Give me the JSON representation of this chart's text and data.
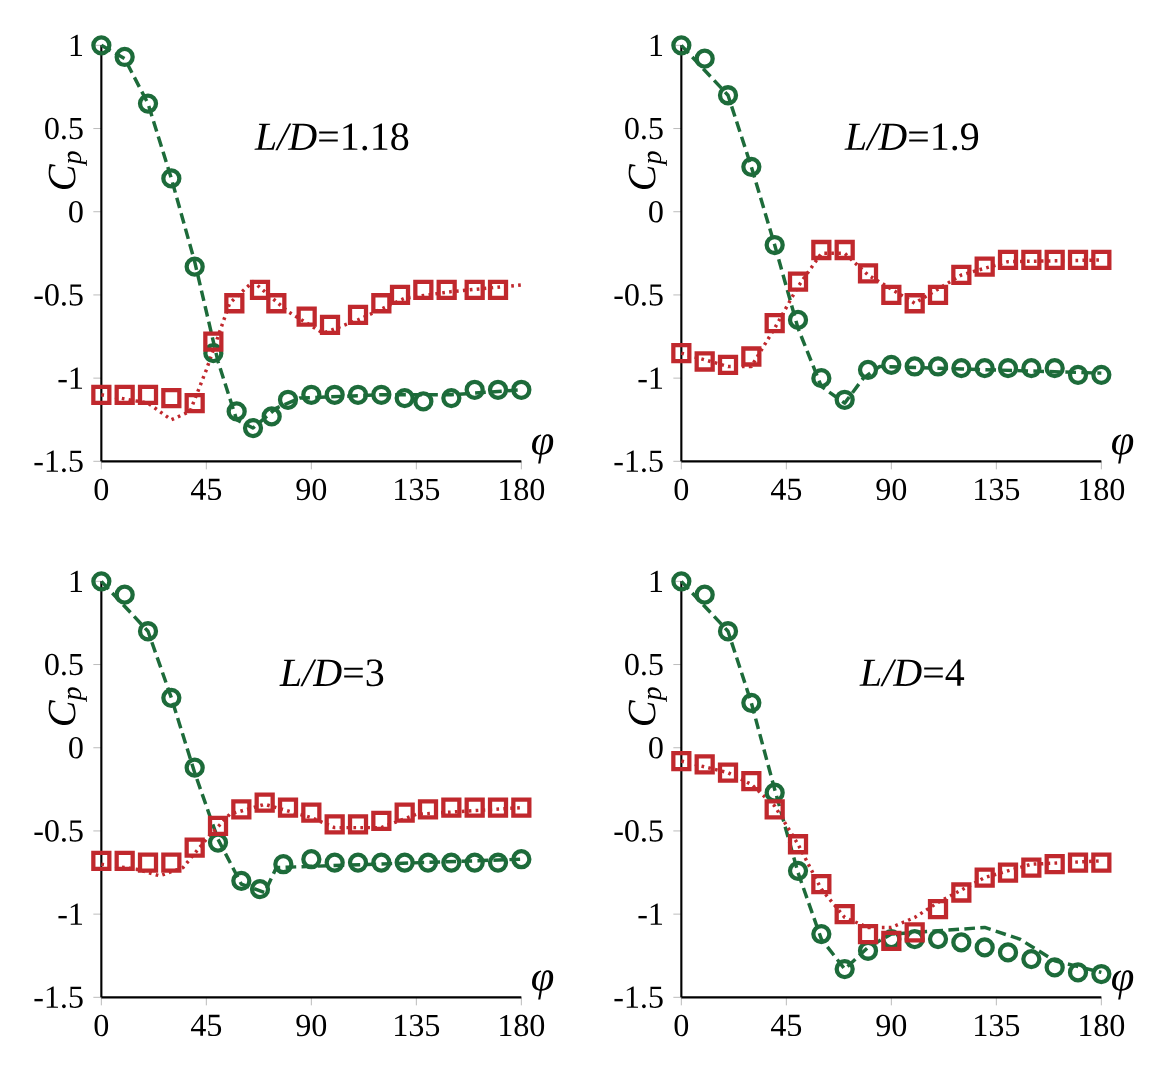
{
  "chart_data": [
    {
      "type": "scatter",
      "title": "*L/D*=1.18",
      "xlabel": "φ",
      "ylabel": "C$_{p}$",
      "xlim": [
        0,
        180
      ],
      "ylim": [
        -1.5,
        1
      ],
      "xticks": [
        0,
        45,
        90,
        135,
        180
      ],
      "yticks": [
        -1.5,
        -1,
        -0.5,
        0,
        0.5,
        1
      ],
      "series": [
        {
          "color": "#1d6b3a",
          "marker": "circle",
          "x": [
            0,
            10,
            20,
            30,
            40,
            48,
            58,
            65,
            73,
            80,
            90,
            100,
            110,
            120,
            130,
            138,
            150,
            160,
            170,
            180
          ],
          "values": [
            1,
            0.93,
            0.65,
            0.2,
            -0.33,
            -0.85,
            -1.2,
            -1.3,
            -1.23,
            -1.13,
            -1.1,
            -1.1,
            -1.1,
            -1.1,
            -1.12,
            -1.14,
            -1.12,
            -1.07,
            -1.07,
            -1.07
          ]
        },
        {
          "type": "line",
          "color": "#1d6b3a",
          "line_style": "dashed",
          "x": [
            0,
            10,
            20,
            30,
            40,
            50,
            58,
            65,
            75,
            85,
            120,
            150,
            180
          ],
          "values": [
            1,
            0.92,
            0.65,
            0.2,
            -0.3,
            -0.9,
            -1.25,
            -1.3,
            -1.18,
            -1.12,
            -1.1,
            -1.1,
            -1.07
          ]
        },
        {
          "color": "#c0282d",
          "marker": "square",
          "x": [
            0,
            10,
            20,
            30,
            40,
            48,
            57,
            68,
            75,
            88,
            98,
            110,
            120,
            128,
            138,
            148,
            160,
            170
          ],
          "values": [
            -1.1,
            -1.1,
            -1.1,
            -1.12,
            -1.15,
            -0.78,
            -0.55,
            -0.47,
            -0.55,
            -0.63,
            -0.68,
            -0.62,
            -0.55,
            -0.5,
            -0.47,
            -0.47,
            -0.47,
            -0.47
          ]
        },
        {
          "type": "line",
          "color": "#c0282d",
          "line_style": "dotted",
          "x": [
            0,
            20,
            30,
            38,
            45,
            55,
            65,
            80,
            95,
            110,
            130,
            150,
            180
          ],
          "values": [
            -1.1,
            -1.15,
            -1.25,
            -1.2,
            -0.95,
            -0.55,
            -0.42,
            -0.6,
            -0.73,
            -0.65,
            -0.52,
            -0.48,
            -0.44
          ]
        }
      ]
    },
    {
      "type": "scatter",
      "title": "*L/D*=1.9",
      "xlabel": "φ",
      "ylabel": "C$_{p}$",
      "xlim": [
        0,
        180
      ],
      "ylim": [
        -1.5,
        1
      ],
      "xticks": [
        0,
        45,
        90,
        135,
        180
      ],
      "yticks": [
        -1.5,
        -1,
        -0.5,
        0,
        0.5,
        1
      ],
      "series": [
        {
          "color": "#1d6b3a",
          "marker": "circle",
          "x": [
            0,
            10,
            20,
            30,
            40,
            50,
            60,
            70,
            80,
            90,
            100,
            110,
            120,
            130,
            140,
            150,
            160,
            170,
            180
          ],
          "values": [
            1,
            0.92,
            0.7,
            0.27,
            -0.2,
            -0.65,
            -1.0,
            -1.13,
            -0.95,
            -0.92,
            -0.93,
            -0.93,
            -0.94,
            -0.94,
            -0.94,
            -0.94,
            -0.94,
            -0.98,
            -0.98
          ]
        },
        {
          "type": "line",
          "color": "#1d6b3a",
          "line_style": "dashed",
          "x": [
            0,
            20,
            30,
            40,
            50,
            60,
            70,
            78,
            85,
            180
          ],
          "values": [
            1,
            0.7,
            0.27,
            -0.2,
            -0.7,
            -1.05,
            -1.15,
            -1.0,
            -0.93,
            -0.97
          ]
        },
        {
          "color": "#c0282d",
          "marker": "square",
          "x": [
            0,
            10,
            20,
            30,
            40,
            50,
            60,
            70,
            80,
            90,
            100,
            110,
            120,
            130,
            140,
            150,
            160,
            170,
            180
          ],
          "values": [
            -0.85,
            -0.9,
            -0.92,
            -0.87,
            -0.67,
            -0.42,
            -0.23,
            -0.23,
            -0.37,
            -0.5,
            -0.55,
            -0.5,
            -0.38,
            -0.33,
            -0.29,
            -0.29,
            -0.29,
            -0.29,
            -0.29
          ]
        },
        {
          "type": "line",
          "color": "#c0282d",
          "line_style": "dotted",
          "x": [
            0,
            20,
            30,
            40,
            50,
            60,
            70,
            80,
            100,
            120,
            140,
            180
          ],
          "values": [
            -0.85,
            -0.93,
            -0.93,
            -0.7,
            -0.45,
            -0.25,
            -0.25,
            -0.38,
            -0.55,
            -0.38,
            -0.3,
            -0.29
          ]
        }
      ]
    },
    {
      "type": "scatter",
      "title": "*L/D*=3",
      "xlabel": "φ",
      "ylabel": "C$_{p}$",
      "xlim": [
        0,
        180
      ],
      "ylim": [
        -1.5,
        1
      ],
      "xticks": [
        0,
        45,
        90,
        135,
        180
      ],
      "yticks": [
        -1.5,
        -1,
        -0.5,
        0,
        0.5,
        1
      ],
      "series": [
        {
          "color": "#1d6b3a",
          "marker": "circle",
          "x": [
            0,
            10,
            20,
            30,
            40,
            50,
            60,
            68,
            78,
            90,
            100,
            110,
            120,
            130,
            140,
            150,
            160,
            170,
            180
          ],
          "values": [
            1,
            0.92,
            0.7,
            0.3,
            -0.12,
            -0.57,
            -0.8,
            -0.85,
            -0.7,
            -0.67,
            -0.69,
            -0.69,
            -0.69,
            -0.69,
            -0.69,
            -0.69,
            -0.69,
            -0.69,
            -0.67
          ]
        },
        {
          "type": "line",
          "color": "#1d6b3a",
          "line_style": "dashed",
          "x": [
            0,
            20,
            30,
            40,
            50,
            60,
            70,
            75,
            180
          ],
          "values": [
            1,
            0.7,
            0.3,
            -0.15,
            -0.55,
            -0.82,
            -0.87,
            -0.72,
            -0.67
          ]
        },
        {
          "color": "#c0282d",
          "marker": "square",
          "x": [
            0,
            10,
            20,
            30,
            40,
            50,
            60,
            70,
            80,
            90,
            100,
            110,
            120,
            130,
            140,
            150,
            160,
            170,
            180
          ],
          "values": [
            -0.68,
            -0.68,
            -0.69,
            -0.69,
            -0.6,
            -0.47,
            -0.37,
            -0.33,
            -0.36,
            -0.39,
            -0.46,
            -0.46,
            -0.44,
            -0.39,
            -0.37,
            -0.36,
            -0.36,
            -0.36,
            -0.36
          ]
        },
        {
          "type": "line",
          "color": "#c0282d",
          "line_style": "dotted",
          "x": [
            0,
            15,
            25,
            35,
            45,
            55,
            70,
            90,
            100,
            120,
            135,
            180
          ],
          "values": [
            -0.7,
            -0.73,
            -0.77,
            -0.72,
            -0.55,
            -0.4,
            -0.34,
            -0.42,
            -0.48,
            -0.48,
            -0.4,
            -0.36
          ]
        }
      ]
    },
    {
      "type": "scatter",
      "title": "*L/D*=4",
      "xlabel": "φ",
      "ylabel": "C$_{p}$",
      "xlim": [
        0,
        180
      ],
      "ylim": [
        -1.5,
        1
      ],
      "xticks": [
        0,
        45,
        90,
        135,
        180
      ],
      "yticks": [
        -1.5,
        -1,
        -0.5,
        0,
        0.5,
        1
      ],
      "series": [
        {
          "color": "#1d6b3a",
          "marker": "circle",
          "x": [
            0,
            10,
            20,
            30,
            40,
            50,
            60,
            70,
            80,
            90,
            100,
            110,
            120,
            130,
            140,
            150,
            160,
            170,
            180
          ],
          "values": [
            1,
            0.92,
            0.7,
            0.27,
            -0.27,
            -0.74,
            -1.12,
            -1.33,
            -1.22,
            -1.15,
            -1.15,
            -1.15,
            -1.17,
            -1.2,
            -1.23,
            -1.27,
            -1.32,
            -1.35,
            -1.36
          ]
        },
        {
          "type": "line",
          "color": "#1d6b3a",
          "line_style": "dashed",
          "x": [
            0,
            20,
            30,
            40,
            50,
            60,
            70,
            80,
            90,
            110,
            130,
            145,
            160,
            180
          ],
          "values": [
            1,
            0.7,
            0.27,
            -0.25,
            -0.75,
            -1.15,
            -1.33,
            -1.2,
            -1.12,
            -1.1,
            -1.08,
            -1.15,
            -1.28,
            -1.35
          ]
        },
        {
          "color": "#c0282d",
          "marker": "square",
          "x": [
            0,
            10,
            20,
            30,
            40,
            50,
            60,
            70,
            80,
            90,
            100,
            110,
            120,
            130,
            140,
            150,
            160,
            170,
            180
          ],
          "values": [
            -0.08,
            -0.1,
            -0.15,
            -0.2,
            -0.37,
            -0.58,
            -0.82,
            -1.0,
            -1.12,
            -1.16,
            -1.11,
            -0.97,
            -0.87,
            -0.78,
            -0.75,
            -0.72,
            -0.7,
            -0.69,
            -0.69
          ]
        },
        {
          "type": "line",
          "color": "#c0282d",
          "line_style": "dotted",
          "x": [
            0,
            20,
            30,
            40,
            50,
            60,
            70,
            80,
            90,
            100,
            110,
            130,
            150,
            180
          ],
          "values": [
            -0.08,
            -0.15,
            -0.22,
            -0.35,
            -0.58,
            -0.85,
            -1.02,
            -1.08,
            -1.08,
            -1.02,
            -0.93,
            -0.78,
            -0.7,
            -0.68
          ]
        }
      ]
    }
  ]
}
